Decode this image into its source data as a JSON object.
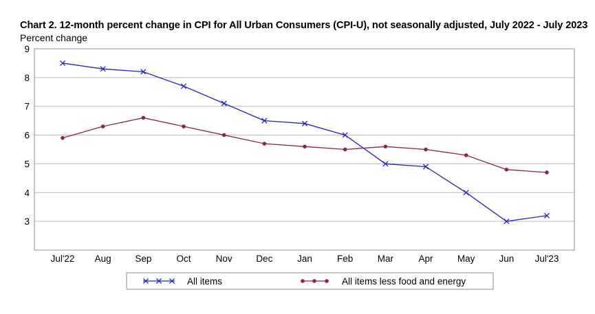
{
  "chart_data": {
    "type": "line",
    "title": "Chart 2. 12-month percent change in CPI for All Urban Consumers (CPI-U), not seasonally adjusted, July 2022 - July 2023",
    "ylabel": "Percent change",
    "xlabel": "",
    "categories": [
      "Jul'22",
      "Aug",
      "Sep",
      "Oct",
      "Nov",
      "Dec",
      "Jan",
      "Feb",
      "Mar",
      "Apr",
      "May",
      "Jun",
      "Jul'23"
    ],
    "ylim": [
      2,
      9
    ],
    "yticks": [
      "9",
      "8",
      "7",
      "6",
      "5",
      "4",
      "3"
    ],
    "grid": true,
    "legend_position": "bottom",
    "series": [
      {
        "name": "All items",
        "values": [
          8.5,
          8.3,
          8.2,
          7.7,
          7.1,
          6.5,
          6.4,
          6.0,
          5.0,
          4.9,
          4.0,
          3.0,
          3.2
        ],
        "color": "#2222cc",
        "marker": "x"
      },
      {
        "name": "All items less food and energy",
        "values": [
          5.9,
          6.3,
          6.6,
          6.3,
          6.0,
          5.7,
          5.6,
          5.5,
          5.6,
          5.5,
          5.3,
          4.8,
          4.7
        ],
        "color": "#8b2252",
        "marker": "circle"
      }
    ]
  }
}
